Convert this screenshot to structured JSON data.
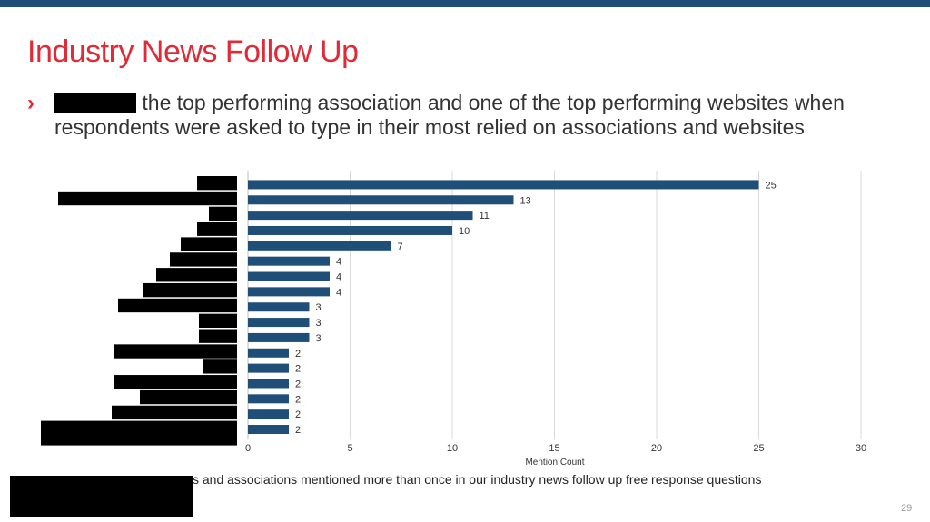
{
  "slide": {
    "title": "Industry News Follow Up",
    "bullet_marker": "›",
    "bullet_text": "the top performing association and one of the top performing websites when respondents were asked to type in their most relied on associations and websites",
    "footnote": "s and associations mentioned more than once in our industry news follow up free response questions",
    "page_number": "29"
  },
  "colors": {
    "accent": "#e02a36",
    "bar": "#1f4e79",
    "topbar": "#1f4e79"
  },
  "chart_data": {
    "type": "bar",
    "orientation": "horizontal",
    "categories": [
      "",
      "",
      "",
      "",
      "",
      "",
      "",
      "",
      "",
      "",
      "",
      "",
      "",
      "",
      "",
      "",
      ""
    ],
    "values": [
      25,
      13,
      11,
      10,
      7,
      4,
      4,
      4,
      3,
      3,
      3,
      2,
      2,
      2,
      2,
      2,
      2
    ],
    "xlabel": "Mention Count",
    "ylabel": "",
    "xlim": [
      0,
      30
    ],
    "xticks": [
      0,
      5,
      10,
      15,
      20,
      25,
      30
    ],
    "grid": true,
    "data_labels": true
  }
}
